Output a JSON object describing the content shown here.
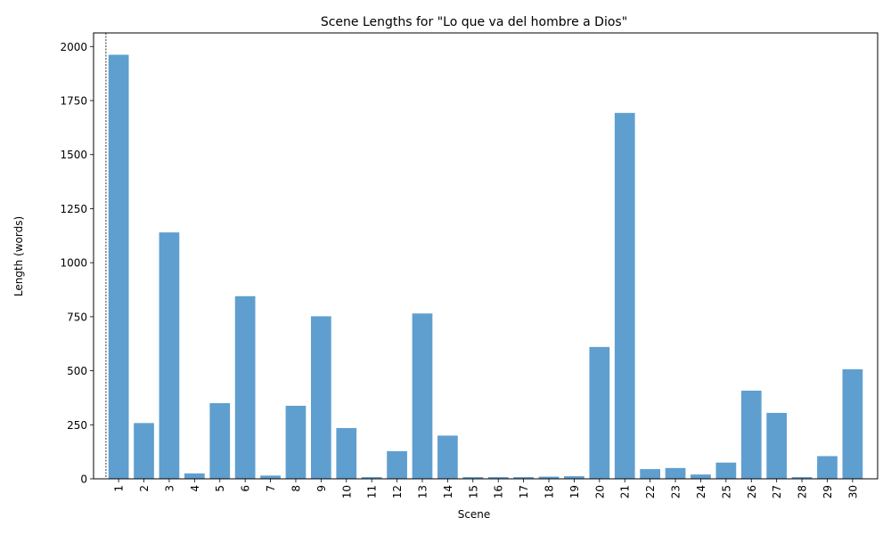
{
  "chart_data": {
    "type": "bar",
    "title": "Scene Lengths for \"Lo que va del hombre a Dios\"",
    "xlabel": "Scene",
    "ylabel": "Length (words)",
    "categories": [
      "1",
      "2",
      "3",
      "4",
      "5",
      "6",
      "7",
      "8",
      "9",
      "10",
      "11",
      "12",
      "13",
      "14",
      "15",
      "16",
      "17",
      "18",
      "19",
      "20",
      "21",
      "22",
      "23",
      "24",
      "25",
      "26",
      "27",
      "28",
      "29",
      "30"
    ],
    "values": [
      1962,
      258,
      1140,
      25,
      350,
      845,
      15,
      338,
      752,
      235,
      8,
      128,
      765,
      200,
      8,
      8,
      8,
      10,
      12,
      610,
      1693,
      45,
      50,
      20,
      75,
      408,
      305,
      8,
      105,
      507
    ],
    "ylim": [
      0,
      2063
    ],
    "yticks": [
      0,
      250,
      500,
      750,
      1000,
      1250,
      1500,
      1750,
      2000
    ],
    "grid": false,
    "legend": "none",
    "bar_color": "#5f9fcf",
    "annotation": {
      "type": "vertical-dashed-line",
      "x": 0.5
    }
  }
}
